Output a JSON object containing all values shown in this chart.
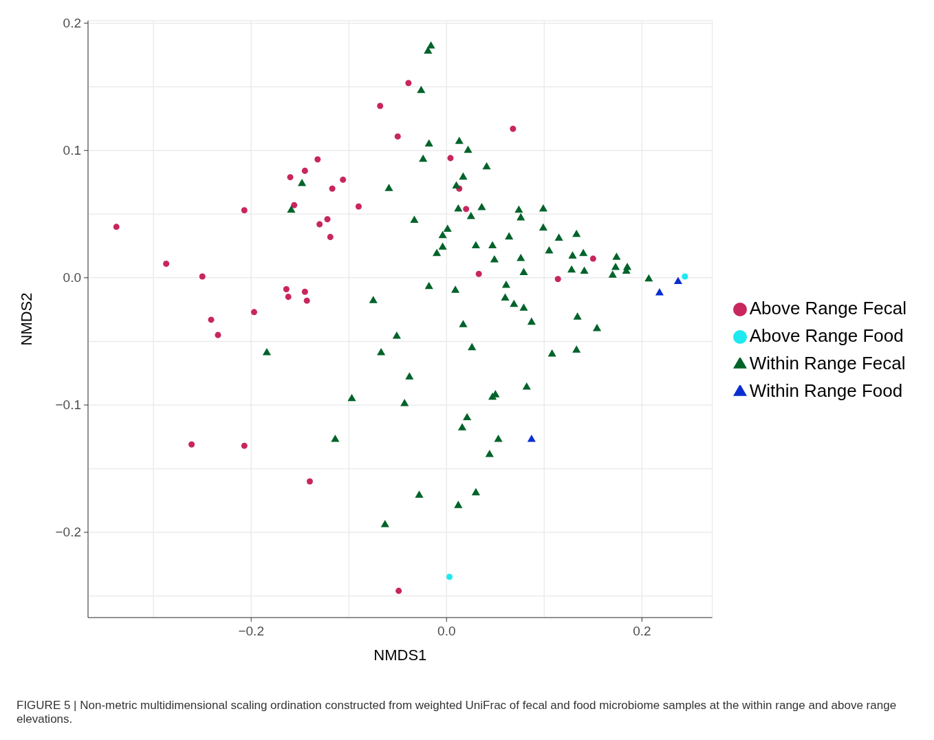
{
  "chart_data": {
    "type": "scatter",
    "xlabel": "NMDS1",
    "ylabel": "NMDS2",
    "annotations": [
      "FIGURE 5 | Non-metric multidimensional scaling ordination constructed from weighted UniFrac of fecal and food microbiome samples at the within range and above range elevations."
    ],
    "xlim": [
      -0.367,
      0.272
    ],
    "ylim": [
      -0.267,
      0.202
    ],
    "xticks": [
      {
        "value": -0.3,
        "label": null
      },
      {
        "value": -0.2,
        "label": "−0.2"
      },
      {
        "value": -0.1,
        "label": null
      },
      {
        "value": 0,
        "label": "0.0"
      },
      {
        "value": 0.1,
        "label": null
      },
      {
        "value": 0.2,
        "label": "0.2"
      }
    ],
    "yticks": [
      {
        "value": -0.25,
        "label": null
      },
      {
        "value": -0.2,
        "label": "−0.2"
      },
      {
        "value": -0.15,
        "label": null
      },
      {
        "value": -0.1,
        "label": "−0.1"
      },
      {
        "value": -0.05,
        "label": null
      },
      {
        "value": 0,
        "label": "0.0"
      },
      {
        "value": 0.05,
        "label": null
      },
      {
        "value": 0.1,
        "label": "0.1"
      },
      {
        "value": 0.15,
        "label": null
      },
      {
        "value": 0.2,
        "label": "0.2"
      }
    ],
    "grid": true,
    "legend": "right",
    "series": [
      {
        "name": "Above Range Food",
        "color": "#1ee8f0",
        "marker": "circle",
        "x": [
          0.244,
          0.003
        ],
        "values": [
          0.001,
          -0.235
        ]
      },
      {
        "name": "Above Range Fecal",
        "color": "#c8265c",
        "marker": "circle",
        "x": [
          -0.338,
          -0.287,
          -0.25,
          -0.241,
          -0.234,
          -0.197,
          -0.207,
          -0.16,
          -0.145,
          -0.156,
          -0.132,
          -0.117,
          -0.106,
          -0.122,
          -0.13,
          -0.119,
          -0.09,
          -0.164,
          -0.162,
          -0.145,
          -0.143,
          -0.068,
          -0.039,
          -0.05,
          0.068,
          0.004,
          0.013,
          0.02,
          0.033,
          0.114,
          0.15,
          -0.261,
          -0.207,
          -0.14,
          -0.049
        ],
        "values": [
          0.04,
          0.011,
          0.001,
          -0.033,
          -0.045,
          -0.027,
          0.053,
          0.079,
          0.084,
          0.057,
          0.093,
          0.07,
          0.077,
          0.046,
          0.042,
          0.032,
          0.056,
          -0.009,
          -0.015,
          -0.011,
          -0.018,
          0.135,
          0.153,
          0.111,
          0.117,
          0.094,
          0.07,
          0.054,
          0.003,
          -0.001,
          0.015,
          -0.131,
          -0.132,
          -0.16,
          -0.246
        ]
      },
      {
        "name": "Within Range Food",
        "color": "#0a2fd0",
        "marker": "triangle",
        "x": [
          0.218,
          0.237,
          0.087
        ],
        "values": [
          -0.012,
          -0.003,
          -0.127
        ]
      },
      {
        "name": "Within Range Fecal",
        "color": "#00632a",
        "marker": "triangle",
        "x": [
          -0.016,
          -0.019,
          -0.026,
          -0.018,
          -0.024,
          0.013,
          0.022,
          0.041,
          0.01,
          0.017,
          -0.059,
          -0.148,
          -0.159,
          -0.033,
          0.012,
          0.025,
          0.036,
          0.001,
          -0.004,
          -0.004,
          -0.01,
          0.03,
          0.047,
          0.049,
          0.064,
          0.074,
          0.076,
          0.099,
          0.099,
          0.105,
          0.115,
          0.076,
          0.079,
          0.133,
          0.129,
          0.14,
          0.128,
          0.141,
          0.174,
          0.173,
          0.17,
          0.185,
          0.184,
          0.207,
          -0.018,
          0.009,
          0.061,
          0.06,
          0.069,
          0.079,
          0.087,
          0.134,
          0.154,
          0.017,
          0.026,
          0.108,
          0.133,
          0.082,
          -0.075,
          -0.051,
          -0.067,
          -0.038,
          -0.043,
          -0.097,
          -0.184,
          -0.114,
          0.021,
          0.016,
          0.05,
          0.047,
          0.053,
          0.044,
          -0.028,
          0.03,
          0.012,
          -0.063
        ],
        "values": [
          0.182,
          0.178,
          0.147,
          0.105,
          0.093,
          0.107,
          0.1,
          0.087,
          0.072,
          0.079,
          0.07,
          0.074,
          0.053,
          0.045,
          0.054,
          0.048,
          0.055,
          0.038,
          0.033,
          0.024,
          0.019,
          0.025,
          0.025,
          0.014,
          0.032,
          0.053,
          0.047,
          0.054,
          0.039,
          0.021,
          0.031,
          0.015,
          0.004,
          0.034,
          0.017,
          0.019,
          0.006,
          0.005,
          0.016,
          0.008,
          0.002,
          0.008,
          0.005,
          -0.001,
          -0.007,
          -0.01,
          -0.006,
          -0.016,
          -0.021,
          -0.024,
          -0.035,
          -0.031,
          -0.04,
          -0.037,
          -0.055,
          -0.06,
          -0.057,
          -0.086,
          -0.018,
          -0.046,
          -0.059,
          -0.078,
          -0.099,
          -0.095,
          -0.059,
          -0.127,
          -0.11,
          -0.118,
          -0.092,
          -0.094,
          -0.127,
          -0.139,
          -0.171,
          -0.169,
          -0.179,
          -0.194
        ]
      }
    ]
  }
}
